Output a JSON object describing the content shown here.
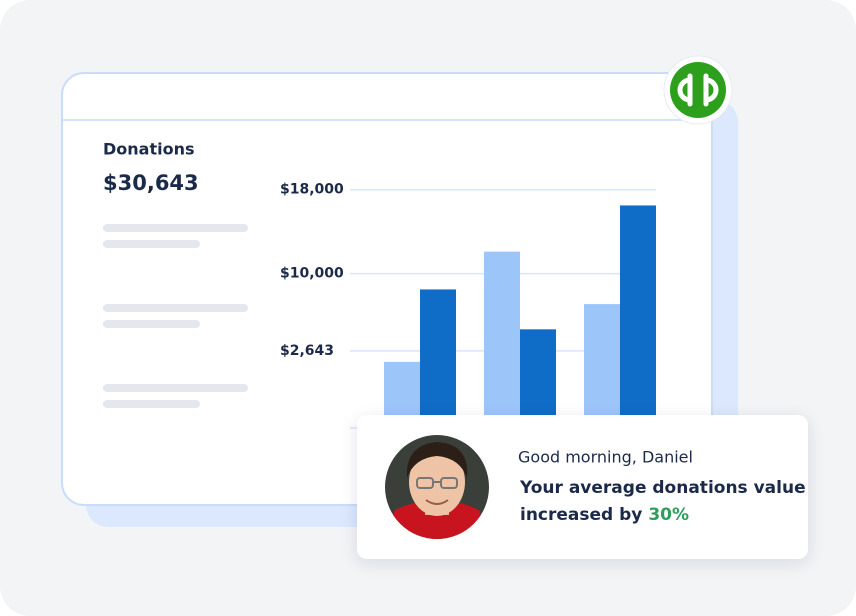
{
  "card": {
    "title": "Donations",
    "amount": "$30,643"
  },
  "chart_data": {
    "type": "bar",
    "categories": [
      null,
      null,
      null
    ],
    "series": [
      {
        "color": "#9cc5fa",
        "values": [
          1600,
          12100,
          7100
        ]
      },
      {
        "color": "#0f6cc7",
        "values": [
          8500,
          4700,
          16500
        ]
      }
    ],
    "ylim": [
      -4700,
      19400
    ],
    "yticks": [
      {
        "value": 2643,
        "label": "$2,643"
      },
      {
        "value": 10000,
        "label": "$10,000"
      },
      {
        "value": 18000,
        "label": "$18,000"
      }
    ],
    "grid": true
  },
  "notification": {
    "greeting": "Good morning, Daniel",
    "line1": "Your average donations value",
    "line2": "increased by",
    "highlight": "30%"
  }
}
